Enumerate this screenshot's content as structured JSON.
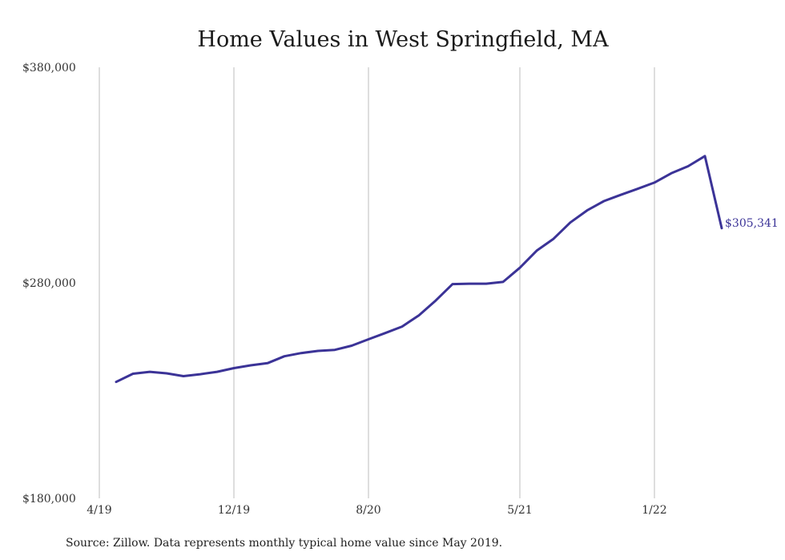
{
  "chart_data": {
    "type": "line",
    "title": "Home Values in West Springfield, MA",
    "xlabel": "",
    "ylabel": "",
    "ylim": [
      180000,
      380000
    ],
    "y_ticks": [
      "$380,000",
      "$280,000",
      "$180,000"
    ],
    "y_tick_values": [
      380000,
      280000,
      180000
    ],
    "x_ticks": [
      "4/19",
      "12/19",
      "8/20",
      "5/21",
      "1/22"
    ],
    "x_tick_dates": [
      "2019-04",
      "2019-12",
      "2020-08",
      "2021-05",
      "2022-01"
    ],
    "grid": "vertical",
    "line_color": "#3b3397",
    "end_label": "$305,341",
    "series": [
      {
        "x": [
          "2019-05",
          "2019-06",
          "2019-07",
          "2019-08",
          "2019-09",
          "2019-10",
          "2019-11",
          "2019-12",
          "2020-01",
          "2020-02",
          "2020-03",
          "2020-04",
          "2020-05",
          "2020-06",
          "2020-07",
          "2020-08",
          "2020-09",
          "2020-10",
          "2020-11",
          "2020-12",
          "2021-01",
          "2021-02",
          "2021-03",
          "2021-04",
          "2021-05",
          "2021-06",
          "2021-07",
          "2021-08",
          "2021-09",
          "2021-10",
          "2021-11",
          "2021-12",
          "2022-01",
          "2022-02",
          "2022-03",
          "2022-04",
          "2022-05"
        ],
        "values": [
          234000,
          237800,
          238700,
          238000,
          236700,
          237600,
          238700,
          240400,
          241700,
          242700,
          245900,
          247400,
          248400,
          248900,
          250800,
          253800,
          256700,
          259700,
          264900,
          271800,
          279400,
          279600,
          279600,
          280400,
          287000,
          294900,
          300400,
          308000,
          313600,
          317900,
          320800,
          323600,
          326500,
          330800,
          334100,
          338800,
          305341
        ]
      }
    ]
  },
  "footer": {
    "source": "Source: Zillow. Data represents monthly typical home value since May 2019."
  }
}
